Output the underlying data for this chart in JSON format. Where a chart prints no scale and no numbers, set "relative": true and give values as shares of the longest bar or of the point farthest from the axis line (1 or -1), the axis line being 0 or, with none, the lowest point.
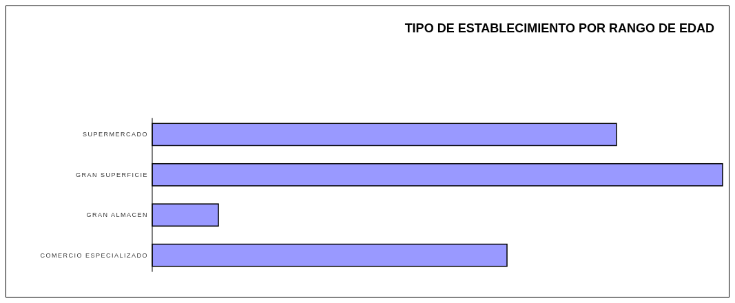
{
  "chart_data": {
    "type": "bar",
    "orientation": "horizontal",
    "relative": true,
    "title": "TIPO DE ESTABLECIMIENTO POR RANGO DE EDAD",
    "categories": [
      "SUPERMERCADO",
      "GRAN SUPERFICIE",
      "GRAN ALMACEN",
      "COMERCIO ESPECIALIZADO"
    ],
    "values": [
      0.814,
      1,
      0.116,
      0.622
    ],
    "color": "#9999ff"
  }
}
